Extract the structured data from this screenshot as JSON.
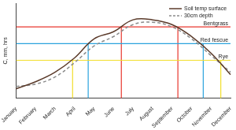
{
  "chart_data": {
    "type": "line",
    "y_label": "C, mm, hrs",
    "categories": [
      "January",
      "February",
      "March",
      "April",
      "May",
      "June",
      "July",
      "August",
      "September",
      "October",
      "November",
      "December"
    ],
    "series": [
      {
        "name": "Soil temp surface",
        "color": "#5b3b2b",
        "line_style": "solid",
        "values": [
          2,
          3.5,
          5.5,
          8.5,
          12.5,
          14,
          16.5,
          16.5,
          15.5,
          13,
          9.5,
          5
        ]
      },
      {
        "name": "30cm depth",
        "color": "#8a8a8a",
        "line_style": "dashed",
        "values": [
          2.5,
          3,
          4.5,
          7.5,
          11,
          13,
          15.5,
          16,
          15,
          12.5,
          9,
          5.5
        ]
      }
    ],
    "thresholds": [
      {
        "name": "Bentgrass",
        "value": 15,
        "color": "#e8372e",
        "x": [
          5.4,
          8.3
        ]
      },
      {
        "name": "Red fescue",
        "value": 11.5,
        "color": "#2aa3dd",
        "x": [
          3.7,
          9.6
        ]
      },
      {
        "name": "Rye",
        "value": 8,
        "color": "#f2de2a",
        "x": [
          2.9,
          10.5
        ]
      }
    ],
    "ylim": [
      0,
      20
    ],
    "tick_labels": "x",
    "grid": false,
    "legend": "top-right"
  }
}
